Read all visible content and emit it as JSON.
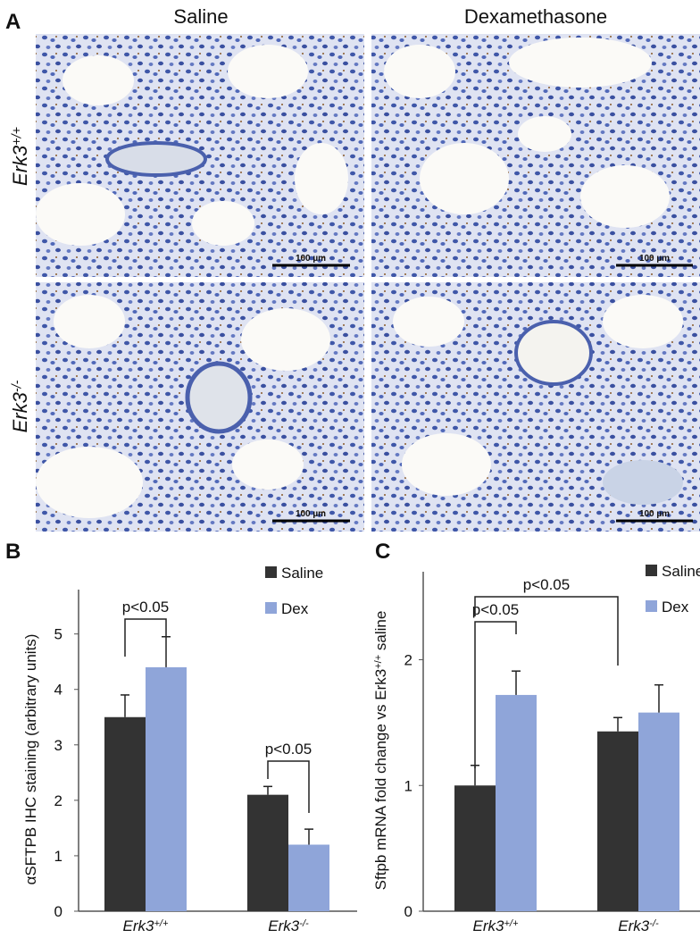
{
  "panel_a": {
    "label": "A",
    "columns": [
      "Saline",
      "Dexamethasone"
    ],
    "rows": [
      "Erk3+/+",
      "Erk3-/-"
    ],
    "scale_bars": [
      "100 µm",
      "100 µm",
      "100 µm",
      "100 µm"
    ]
  },
  "chart_data": [
    {
      "type": "bar",
      "label": "B",
      "ylabel": "αSFTPB IHC staining (arbitrary units)",
      "categories": [
        "Erk3+/+",
        "Erk3-/-"
      ],
      "series": [
        {
          "name": "Saline",
          "color": "#333333",
          "values": [
            3.5,
            2.1
          ],
          "errors": [
            0.4,
            0.15
          ]
        },
        {
          "name": "Dex",
          "color": "#8fa5d9",
          "values": [
            4.4,
            1.2
          ],
          "errors": [
            0.55,
            0.28
          ]
        }
      ],
      "ylim": [
        0,
        5.8
      ],
      "yticks": [
        0,
        1,
        2,
        3,
        4,
        5
      ],
      "annotations": [
        "p<0.05",
        "p<0.05"
      ]
    },
    {
      "type": "bar",
      "label": "C",
      "ylabel": "Sftpb mRNA fold change vs Erk3+/+ saline",
      "categories": [
        "Erk3+/+",
        "Erk3-/-"
      ],
      "series": [
        {
          "name": "Saline",
          "color": "#333333",
          "values": [
            1.0,
            1.43
          ],
          "errors": [
            0.16,
            0.11
          ]
        },
        {
          "name": "Dex",
          "color": "#8fa5d9",
          "values": [
            1.72,
            1.58
          ],
          "errors": [
            0.19,
            0.22
          ]
        }
      ],
      "ylim": [
        0,
        2.7
      ],
      "yticks": [
        0,
        1,
        2
      ],
      "annotations": [
        "p<0.05",
        "p<0.05"
      ]
    }
  ]
}
